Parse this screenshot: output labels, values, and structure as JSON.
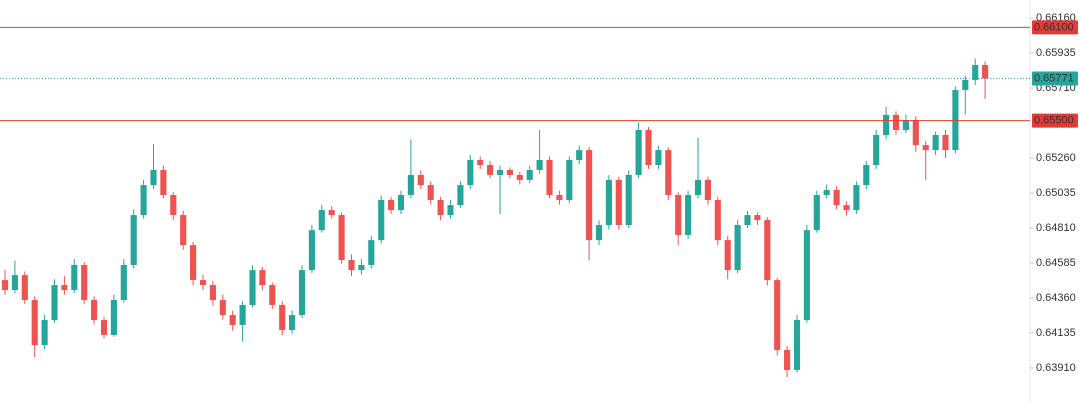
{
  "chart_data": {
    "type": "candlestick",
    "up_color": "#26a69a",
    "down_color": "#ef5350",
    "ylim": [
      0.63691,
      0.66276
    ],
    "yticks": [
      {
        "value": 0.6616,
        "label": "0.66160"
      },
      0.65935,
      {
        "value": 0.6571,
        "label": "0.65710"
      },
      {
        "value": 0.6526,
        "label": "0.65260"
      },
      0.65035,
      {
        "value": 0.6481,
        "label": "0.64810"
      },
      0.64585,
      {
        "value": 0.6436,
        "label": "0.64360"
      },
      0.64135,
      {
        "value": 0.6391,
        "label": "0.63910"
      }
    ],
    "levels": [
      {
        "price": {
          "value": 0.661,
          "label": "0.66100"
        },
        "color": "#e53935",
        "dashed": false
      },
      {
        "price": {
          "value": 0.655,
          "label": "0.65500"
        },
        "color": "#e53935",
        "dashed": false
      },
      {
        "price": 0.65771,
        "color": "#26a69a",
        "dashed": true
      }
    ],
    "open": [
      0.64475,
      0.64411,
      0.64507,
      0.64347,
      0.64057,
      0.64218,
      0.64443,
      0.64411,
      0.64572,
      0.64347,
      0.64218,
      0.64122,
      0.64347,
      0.64572,
      0.64893,
      0.65086,
      0.65183,
      0.65022,
      0.64893,
      0.647,
      0.64475,
      0.64443,
      0.64347,
      0.6425,
      0.64186,
      0.64315,
      0.64539,
      0.64443,
      0.64315,
      0.64154,
      0.6425,
      0.64539,
      0.64796,
      0.64925,
      0.64893,
      0.64604,
      0.64539,
      0.64572,
      0.64732,
      0.6499,
      0.64925,
      0.65022,
      0.65151,
      0.65086,
      0.6499,
      0.64893,
      0.64957,
      0.65086,
      0.65247,
      0.65215,
      0.65151,
      0.65183,
      0.65151,
      0.65119,
      0.65183,
      0.65247,
      0.65022,
      0.6499,
      0.65247,
      0.65311,
      0.64732,
      0.64829,
      0.65119,
      0.64829,
      0.65151,
      0.6544,
      0.65215,
      0.65311,
      0.65022,
      0.64765,
      0.65022,
      0.65119,
      0.6499,
      0.64732,
      0.64539,
      0.64829,
      0.64893,
      0.64861,
      0.64475,
      0.64025,
      0.63897,
      0.64218,
      0.64796,
      0.65022,
      0.65054,
      0.64957,
      0.64925,
      0.65086,
      0.65215,
      0.65408,
      0.65537,
      0.6544,
      0.65504,
      0.65343,
      0.65311,
      0.65408,
      0.65311,
      0.65697,
      0.65762,
      0.65858
    ],
    "high": [
      0.6454,
      0.646,
      0.6453,
      0.6437,
      0.6425,
      0.6448,
      0.645,
      0.6461,
      0.6459,
      0.6437,
      0.6424,
      0.6438,
      0.6461,
      0.6493,
      0.6512,
      0.6535,
      0.6521,
      0.6504,
      0.6492,
      0.6472,
      0.6451,
      0.6447,
      0.6438,
      0.6428,
      0.6434,
      0.6457,
      0.6456,
      0.6446,
      0.6434,
      0.6428,
      0.6457,
      0.6483,
      0.6496,
      0.6495,
      0.6491,
      0.6464,
      0.6461,
      0.6476,
      0.6502,
      0.6501,
      0.6505,
      0.6538,
      0.6518,
      0.6511,
      0.6501,
      0.6499,
      0.6511,
      0.6528,
      0.6527,
      0.6524,
      0.6521,
      0.652,
      0.6517,
      0.6521,
      0.6544,
      0.6527,
      0.6505,
      0.6527,
      0.6534,
      0.6533,
      0.6486,
      0.6515,
      0.6514,
      0.6518,
      0.6549,
      0.6546,
      0.6534,
      0.6533,
      0.6504,
      0.6505,
      0.6539,
      0.6514,
      0.6501,
      0.6476,
      0.6486,
      0.6492,
      0.6491,
      0.6488,
      0.6449,
      0.6405,
      0.6425,
      0.6483,
      0.6505,
      0.6509,
      0.6508,
      0.6498,
      0.6511,
      0.6524,
      0.6544,
      0.6559,
      0.6556,
      0.6554,
      0.6553,
      0.6537,
      0.6543,
      0.6544,
      0.6572,
      0.6579,
      0.659,
      0.6588
    ],
    "low": [
      0.6438,
      0.6439,
      0.6432,
      0.6398,
      0.6403,
      0.642,
      0.6438,
      0.6439,
      0.6432,
      0.6419,
      0.641,
      0.6411,
      0.6433,
      0.6455,
      0.6487,
      0.6506,
      0.65,
      0.6486,
      0.6467,
      0.6444,
      0.6441,
      0.6431,
      0.6422,
      0.6415,
      0.6408,
      0.643,
      0.6441,
      0.6429,
      0.6412,
      0.6413,
      0.6423,
      0.6452,
      0.6478,
      0.6487,
      0.6458,
      0.645,
      0.6451,
      0.6455,
      0.6471,
      0.649,
      0.649,
      0.65,
      0.6506,
      0.6496,
      0.6486,
      0.6487,
      0.6494,
      0.6506,
      0.6519,
      0.6513,
      0.649,
      0.6513,
      0.6509,
      0.651,
      0.6516,
      0.65,
      0.6496,
      0.6497,
      0.6522,
      0.646,
      0.647,
      0.648,
      0.648,
      0.6481,
      0.6513,
      0.6519,
      0.6519,
      0.6499,
      0.647,
      0.6474,
      0.65,
      0.6496,
      0.647,
      0.6448,
      0.6452,
      0.6481,
      0.6483,
      0.6444,
      0.6399,
      0.6385,
      0.6388,
      0.642,
      0.6478,
      0.65,
      0.6493,
      0.6489,
      0.649,
      0.6506,
      0.6519,
      0.6538,
      0.6541,
      0.6542,
      0.653,
      0.6512,
      0.6528,
      0.6526,
      0.6529,
      0.6554,
      0.6573,
      0.6564
    ],
    "close": [
      0.64411,
      0.64507,
      0.64347,
      0.64057,
      0.64218,
      0.64443,
      0.64411,
      0.64572,
      0.64347,
      0.64218,
      0.64122,
      0.64347,
      0.64572,
      0.64893,
      0.65086,
      0.65183,
      0.65022,
      0.64893,
      0.647,
      0.64475,
      0.64443,
      0.64347,
      0.6425,
      0.64186,
      0.64315,
      0.64539,
      0.64443,
      0.64315,
      0.64154,
      0.6425,
      0.64539,
      0.64796,
      0.64925,
      0.64893,
      0.64604,
      0.64539,
      0.64572,
      0.64732,
      0.6499,
      0.64925,
      0.65022,
      0.65151,
      0.65086,
      0.6499,
      0.64893,
      0.64957,
      0.65086,
      0.65247,
      0.65215,
      0.65151,
      0.65183,
      0.65151,
      0.65119,
      0.65183,
      0.65247,
      0.65022,
      0.6499,
      0.65247,
      0.65311,
      0.64732,
      0.64829,
      0.65119,
      0.64829,
      0.65151,
      0.6544,
      0.65215,
      0.65311,
      0.65022,
      0.64765,
      0.65022,
      0.65119,
      0.6499,
      0.64732,
      0.64539,
      0.64829,
      0.64893,
      0.64861,
      0.64475,
      0.64025,
      0.63897,
      0.64218,
      0.64796,
      0.65022,
      0.65054,
      0.64957,
      0.64925,
      0.65086,
      0.65215,
      0.65408,
      0.65537,
      0.6544,
      0.65504,
      0.65343,
      0.65311,
      0.65408,
      0.65311,
      0.65697,
      0.65762,
      0.65858,
      0.65771
    ]
  }
}
